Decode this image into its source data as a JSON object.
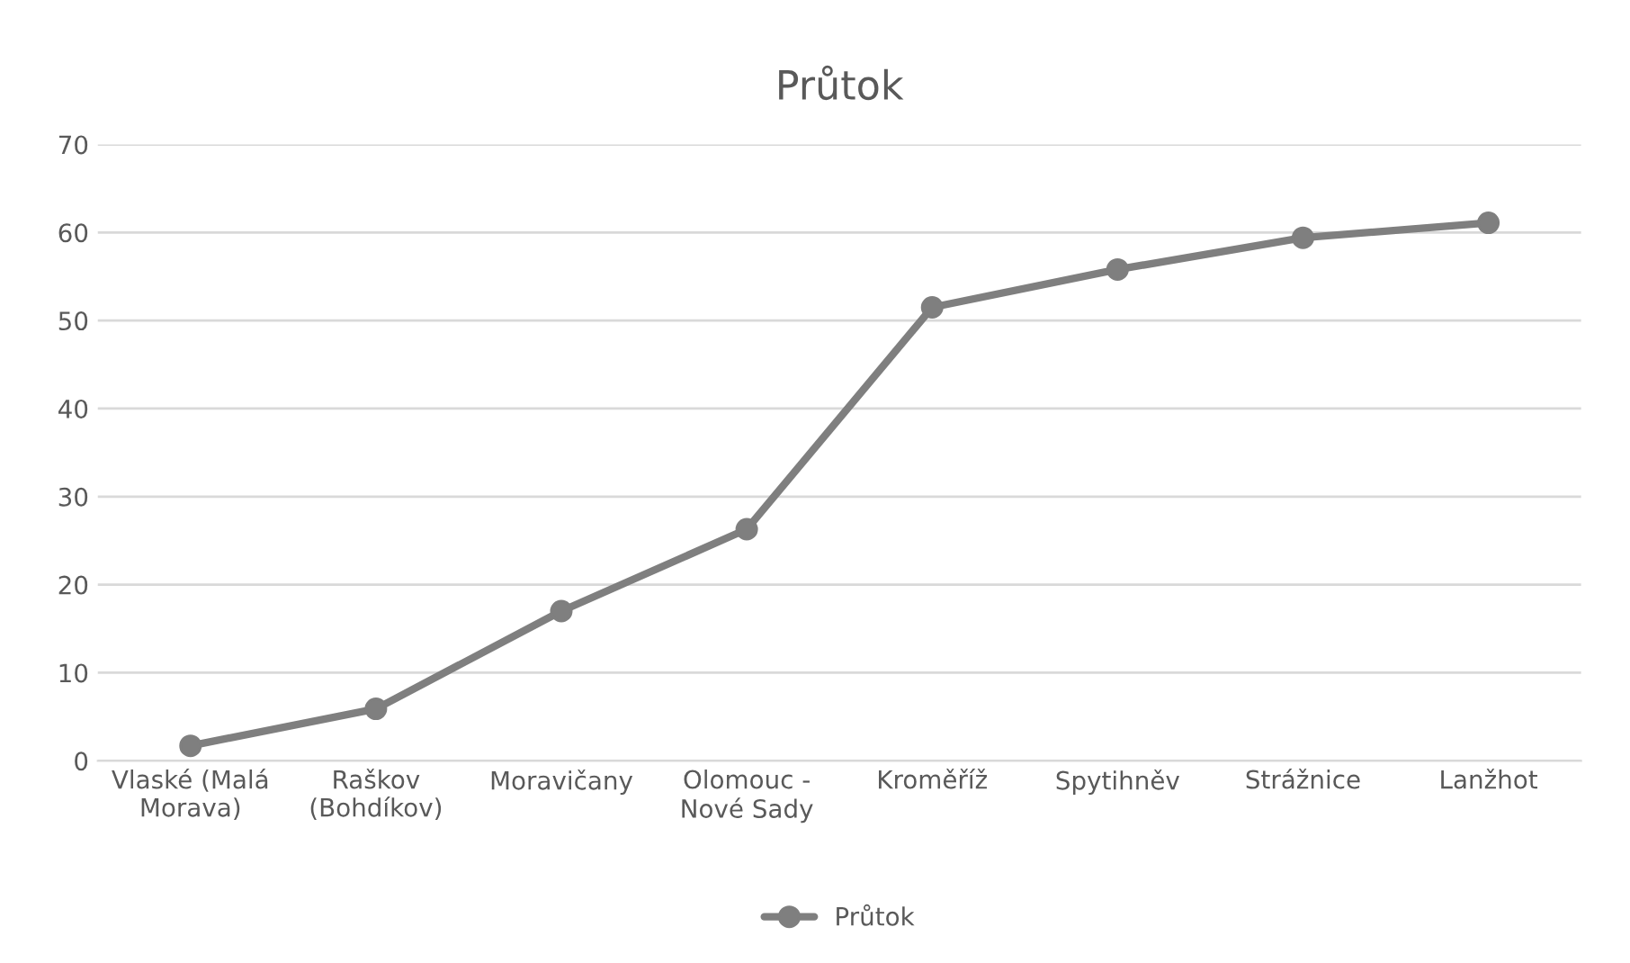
{
  "chart_data": {
    "type": "line",
    "title": "Průtok",
    "categories": [
      "Vlaské (Malá\nMorava)",
      "Raškov\n(Bohdíkov)",
      "Moravičany",
      "Olomouc -\nNové Sady",
      "Kroměříž",
      "Spytihněv",
      "Strážnice",
      "Lanžhot"
    ],
    "series": [
      {
        "name": "Průtok",
        "color": "#7f7f7f",
        "values": [
          1.7,
          5.9,
          17,
          26.3,
          51.5,
          55.8,
          59.4,
          61.1
        ]
      }
    ],
    "ylim": [
      0,
      70
    ],
    "yticks": [
      0,
      10,
      20,
      30,
      40,
      50,
      60,
      70
    ],
    "grid": "y",
    "legend": "bottom",
    "marker": "circle",
    "line_style": "solid"
  }
}
